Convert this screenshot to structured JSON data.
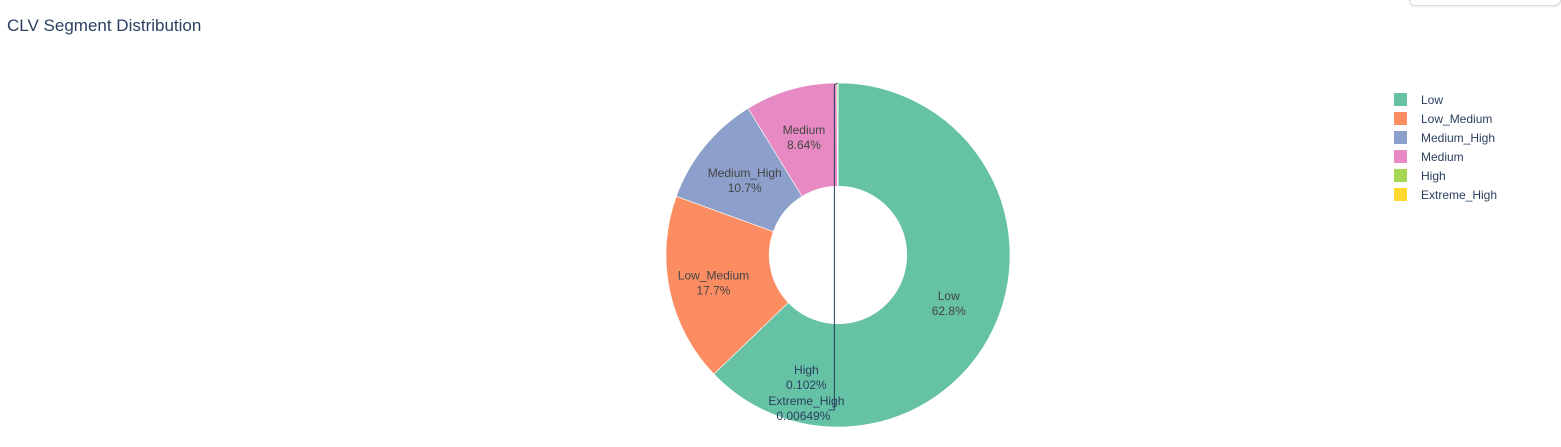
{
  "chart_data": {
    "type": "pie",
    "hole": 0.4,
    "title": "CLV Segment Distribution",
    "legend_position": "right",
    "slices": [
      {
        "label": "Low",
        "value": 62.8,
        "text": "62.8%",
        "color": "#66c2a5"
      },
      {
        "label": "Low_Medium",
        "value": 17.7,
        "text": "17.7%",
        "color": "#fc8d62"
      },
      {
        "label": "Medium_High",
        "value": 10.7,
        "text": "10.7%",
        "color": "#8da0cb"
      },
      {
        "label": "Medium",
        "value": 8.64,
        "text": "8.64%",
        "color": "#e78ac3"
      },
      {
        "label": "High",
        "value": 0.102,
        "text": "0.102%",
        "color": "#a6d854"
      },
      {
        "label": "Extreme_High",
        "value": 0.00649,
        "text": "0.00649%",
        "color": "#ffd92f"
      }
    ]
  }
}
